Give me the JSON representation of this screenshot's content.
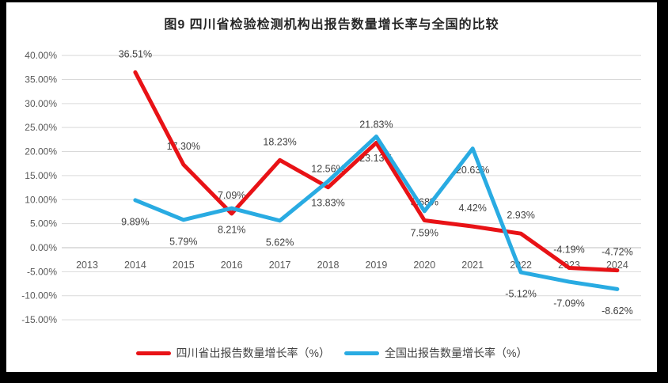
{
  "title": "图9  四川省检验检测机构出报告数量增长率与全国的比较",
  "colors": {
    "frame": "#000000",
    "canvas": "#ffffff",
    "grid": "#d9d9d9",
    "zero_axis": "#bfbfbf",
    "tick_text": "#595959",
    "data_label_text": "#404040",
    "title_text": "#262626",
    "sichuan_red": "#e81216",
    "national_blue": "#29abe2"
  },
  "chart_data": {
    "type": "line",
    "title": "图9  四川省检验检测机构出报告数量增长率与全国的比较",
    "categories": [
      "2013",
      "2014",
      "2015",
      "2016",
      "2017",
      "2018",
      "2019",
      "2020",
      "2021",
      "2022",
      "2023",
      "2024"
    ],
    "series": [
      {
        "name": "四川省出报告数量增长率（%）",
        "color": "#e81216",
        "label_position": "above",
        "values": [
          null,
          36.51,
          17.3,
          7.09,
          18.23,
          12.56,
          21.83,
          5.68,
          4.42,
          2.93,
          -4.19,
          -4.72
        ],
        "labels": [
          "",
          "36.51%",
          "17.30%",
          "7.09%",
          "18.23%",
          "12.56%",
          "21.83%",
          "5.68%",
          "4.42%",
          "2.93%",
          "-4.19%",
          "-4.72%"
        ]
      },
      {
        "name": "全国出报告数量增长率（%）",
        "color": "#29abe2",
        "label_position": "below",
        "values": [
          null,
          9.89,
          5.79,
          8.21,
          5.62,
          13.83,
          23.13,
          7.59,
          20.63,
          -5.12,
          -7.09,
          -8.62
        ],
        "labels": [
          "",
          "9.89%",
          "5.79%",
          "8.21%",
          "5.62%",
          "13.83%",
          "23.13%",
          "7.59%",
          "20.63%",
          "-5.12%",
          "-7.09%",
          "-8.62%"
        ]
      }
    ],
    "ylim": [
      -15,
      40
    ],
    "ytick_step": 5,
    "ytick_values": [
      40,
      35,
      30,
      25,
      20,
      15,
      10,
      5,
      0,
      -5,
      -10,
      -15
    ],
    "ytick_labels": [
      "40.00%",
      "35.00%",
      "30.00%",
      "25.00%",
      "20.00%",
      "15.00%",
      "10.00%",
      "5.00%",
      "0.00%",
      "-5.00%",
      "-10.00%",
      "-15.00%"
    ],
    "grid": true,
    "legend_position": "bottom"
  }
}
